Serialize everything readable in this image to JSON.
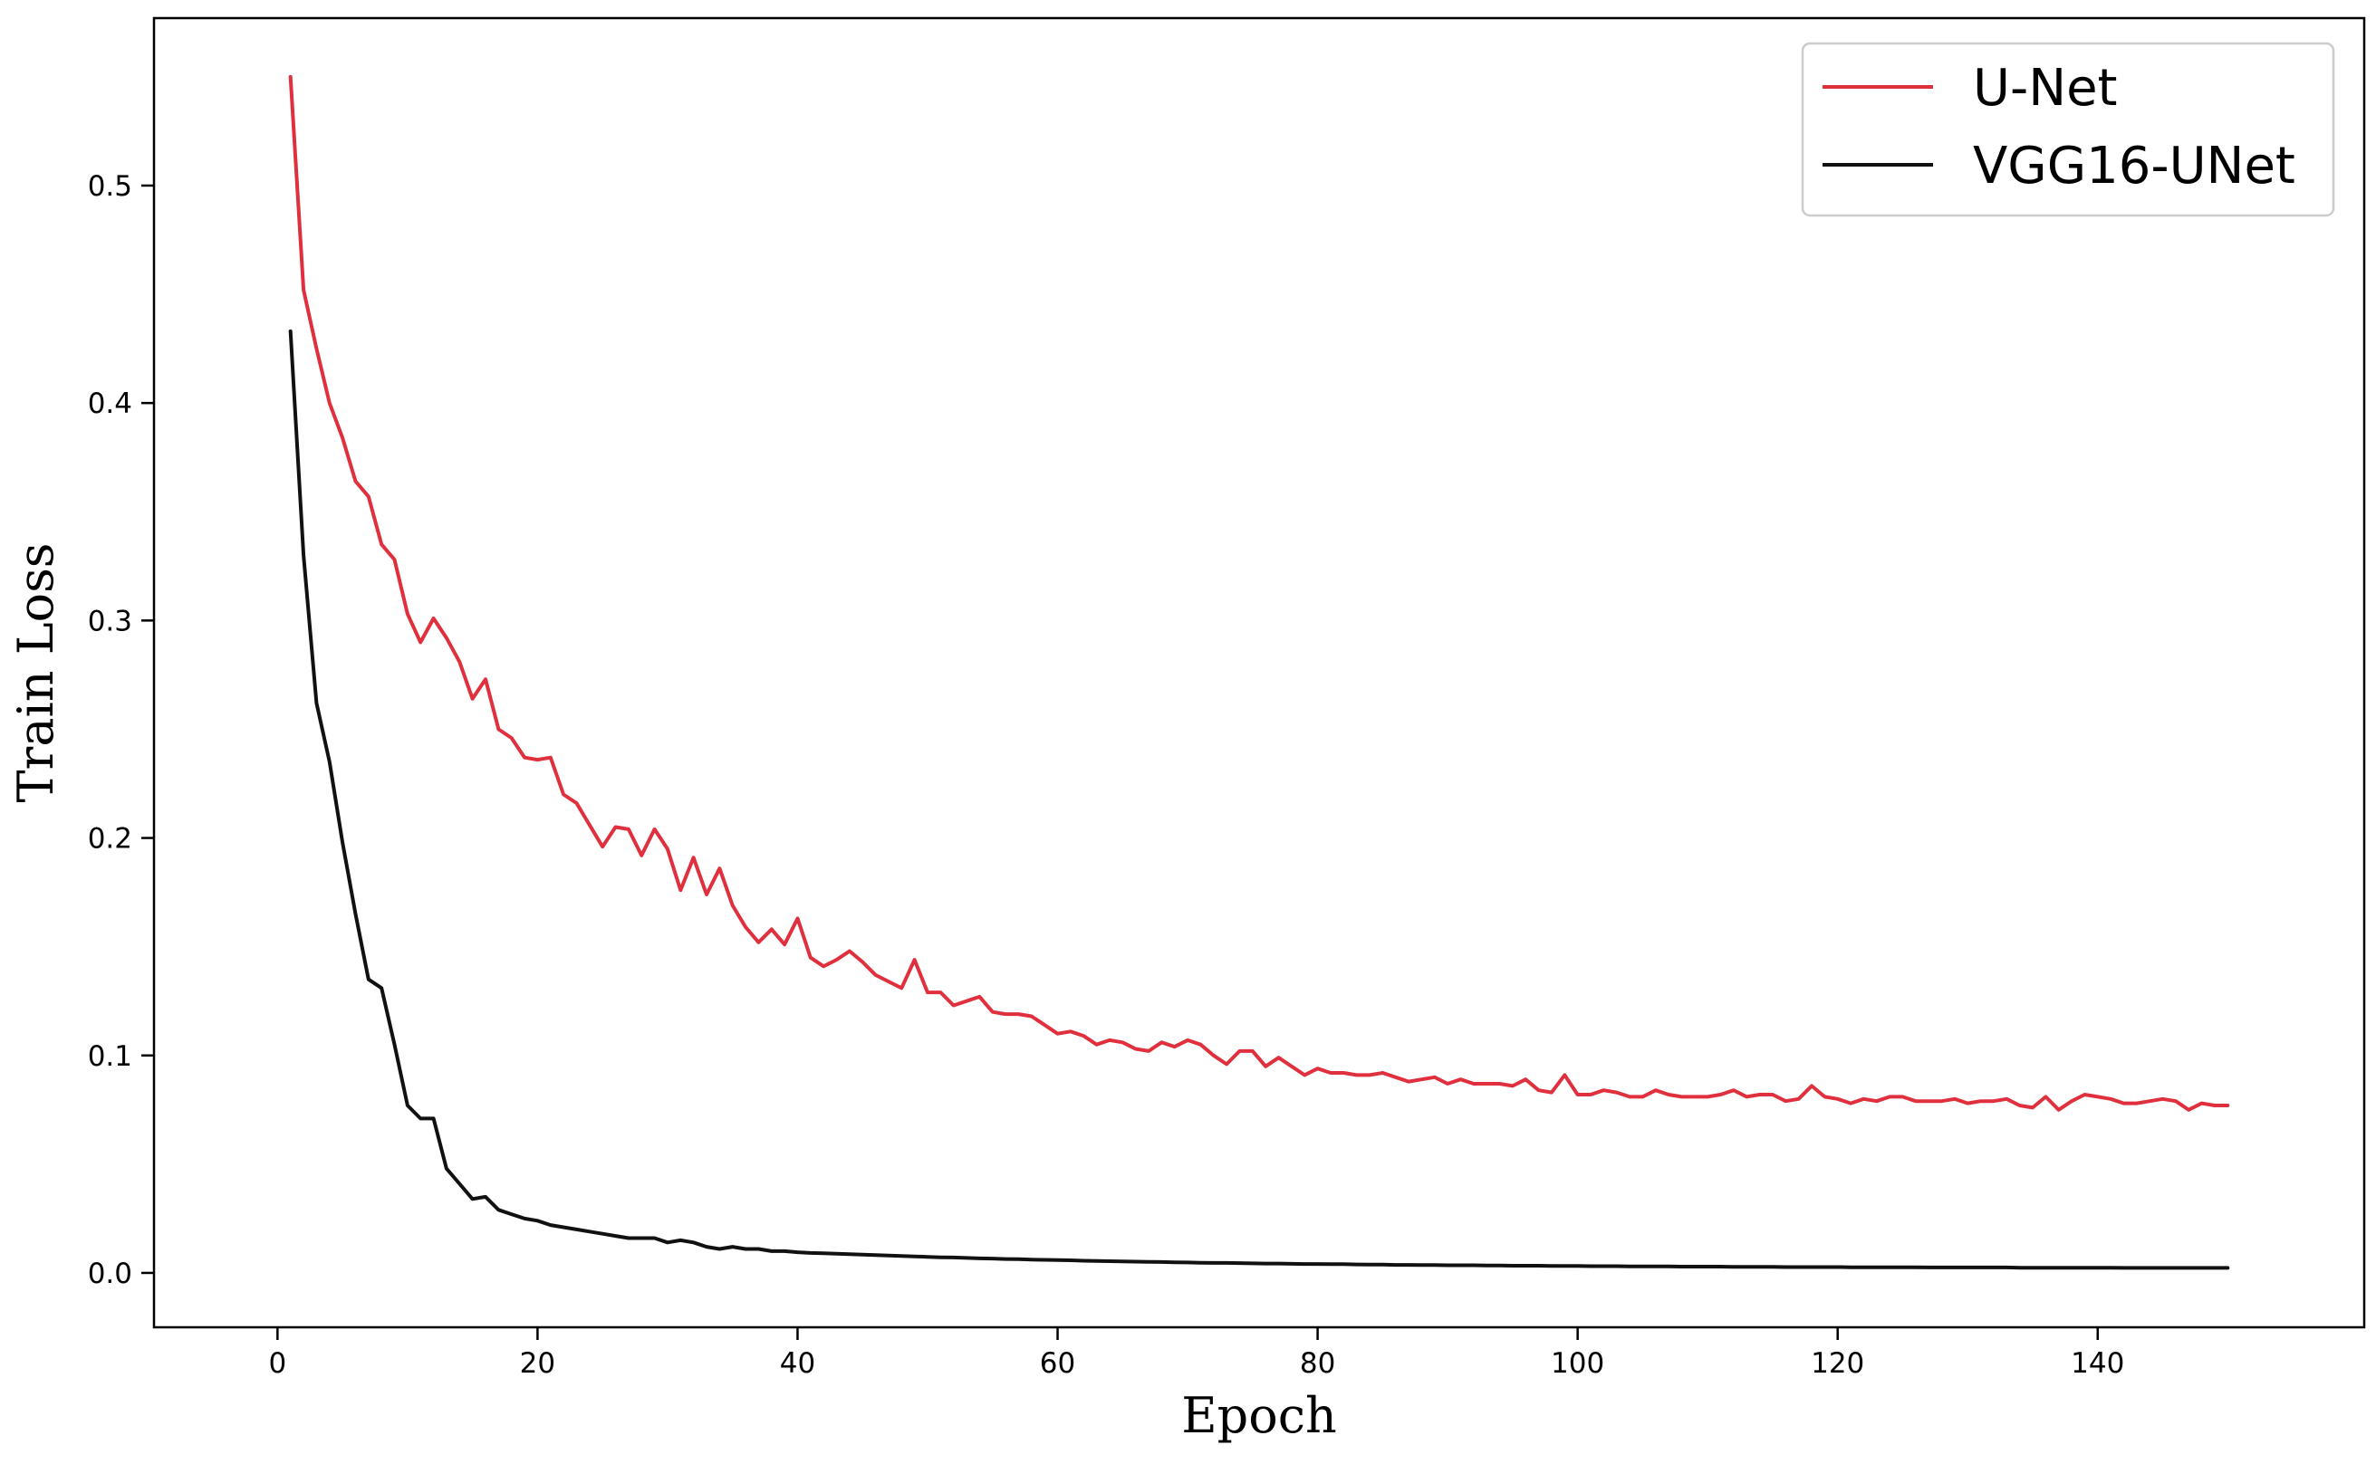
{
  "chart_data": {
    "type": "line",
    "title": "",
    "xlabel": "Epoch",
    "ylabel": "Train Loss",
    "xlim": [
      -9.5,
      160.5
    ],
    "ylim": [
      -0.025,
      0.577
    ],
    "xticks": [
      0,
      20,
      40,
      60,
      80,
      100,
      120,
      140
    ],
    "yticks": [
      0.0,
      0.1,
      0.2,
      0.3,
      0.4,
      0.5
    ],
    "ytick_labels": [
      "0.0",
      "0.1",
      "0.2",
      "0.3",
      "0.4",
      "0.5"
    ],
    "grid": false,
    "legend_position": "top-right",
    "series": [
      {
        "name": "U-Net",
        "color": "#e0303e",
        "x_start": 1,
        "x_step": 1,
        "values": [
          0.55,
          0.452,
          0.425,
          0.4,
          0.384,
          0.364,
          0.357,
          0.335,
          0.328,
          0.303,
          0.29,
          0.301,
          0.292,
          0.281,
          0.264,
          0.273,
          0.25,
          0.246,
          0.237,
          0.236,
          0.237,
          0.22,
          0.216,
          0.206,
          0.196,
          0.205,
          0.204,
          0.192,
          0.204,
          0.195,
          0.176,
          0.191,
          0.174,
          0.186,
          0.169,
          0.159,
          0.152,
          0.158,
          0.151,
          0.163,
          0.145,
          0.141,
          0.144,
          0.148,
          0.143,
          0.137,
          0.134,
          0.131,
          0.144,
          0.129,
          0.129,
          0.123,
          0.125,
          0.127,
          0.12,
          0.119,
          0.119,
          0.118,
          0.114,
          0.11,
          0.111,
          0.109,
          0.105,
          0.107,
          0.106,
          0.103,
          0.102,
          0.106,
          0.104,
          0.107,
          0.105,
          0.1,
          0.096,
          0.102,
          0.102,
          0.095,
          0.099,
          0.095,
          0.091,
          0.094,
          0.092,
          0.092,
          0.091,
          0.091,
          0.092,
          0.09,
          0.088,
          0.089,
          0.09,
          0.087,
          0.089,
          0.087,
          0.087,
          0.087,
          0.086,
          0.089,
          0.084,
          0.083,
          0.091,
          0.082,
          0.082,
          0.084,
          0.083,
          0.081,
          0.081,
          0.084,
          0.082,
          0.081,
          0.081,
          0.081,
          0.082,
          0.084,
          0.081,
          0.082,
          0.082,
          0.079,
          0.08,
          0.086,
          0.081,
          0.08,
          0.078,
          0.08,
          0.079,
          0.081,
          0.081,
          0.079,
          0.079,
          0.079,
          0.08,
          0.078,
          0.079,
          0.079,
          0.08,
          0.077,
          0.076,
          0.081,
          0.075,
          0.079,
          0.082,
          0.081,
          0.08,
          0.078,
          0.078,
          0.079,
          0.08,
          0.079,
          0.075,
          0.078,
          0.077,
          0.077
        ]
      },
      {
        "name": "VGG16-UNet",
        "color": "#111111",
        "x_start": 1,
        "x_step": 1,
        "values": [
          0.433,
          0.33,
          0.262,
          0.235,
          0.198,
          0.165,
          0.135,
          0.131,
          0.105,
          0.077,
          0.071,
          0.071,
          0.048,
          0.041,
          0.034,
          0.035,
          0.029,
          0.027,
          0.025,
          0.024,
          0.022,
          0.021,
          0.02,
          0.019,
          0.018,
          0.017,
          0.016,
          0.016,
          0.016,
          0.014,
          0.015,
          0.014,
          0.012,
          0.011,
          0.012,
          0.011,
          0.011,
          0.01,
          0.01,
          0.0095,
          0.0092,
          0.009,
          0.0088,
          0.0086,
          0.0084,
          0.0082,
          0.008,
          0.0078,
          0.0076,
          0.0074,
          0.0072,
          0.0071,
          0.0069,
          0.0067,
          0.0066,
          0.0064,
          0.0063,
          0.0061,
          0.006,
          0.0059,
          0.0058,
          0.0056,
          0.0055,
          0.0054,
          0.0053,
          0.0052,
          0.0051,
          0.005,
          0.0049,
          0.0048,
          0.0047,
          0.0046,
          0.0046,
          0.0045,
          0.0044,
          0.0043,
          0.0043,
          0.0042,
          0.0041,
          0.0041,
          0.004,
          0.004,
          0.0039,
          0.0038,
          0.0038,
          0.0037,
          0.0037,
          0.0036,
          0.0036,
          0.0035,
          0.0035,
          0.0035,
          0.0034,
          0.0034,
          0.0033,
          0.0033,
          0.0033,
          0.0032,
          0.0032,
          0.0032,
          0.0031,
          0.0031,
          0.0031,
          0.003,
          0.003,
          0.003,
          0.003,
          0.0029,
          0.0029,
          0.0029,
          0.0029,
          0.0028,
          0.0028,
          0.0028,
          0.0028,
          0.0027,
          0.0027,
          0.0027,
          0.0027,
          0.0027,
          0.0026,
          0.0026,
          0.0026,
          0.0026,
          0.0026,
          0.0026,
          0.0025,
          0.0025,
          0.0025,
          0.0025,
          0.0025,
          0.0025,
          0.0025,
          0.0024,
          0.0024,
          0.0024,
          0.0024,
          0.0024,
          0.0024,
          0.0024,
          0.0024,
          0.0023,
          0.0023,
          0.0023,
          0.0023,
          0.0023,
          0.0023,
          0.0023,
          0.0023,
          0.0023
        ]
      }
    ]
  }
}
